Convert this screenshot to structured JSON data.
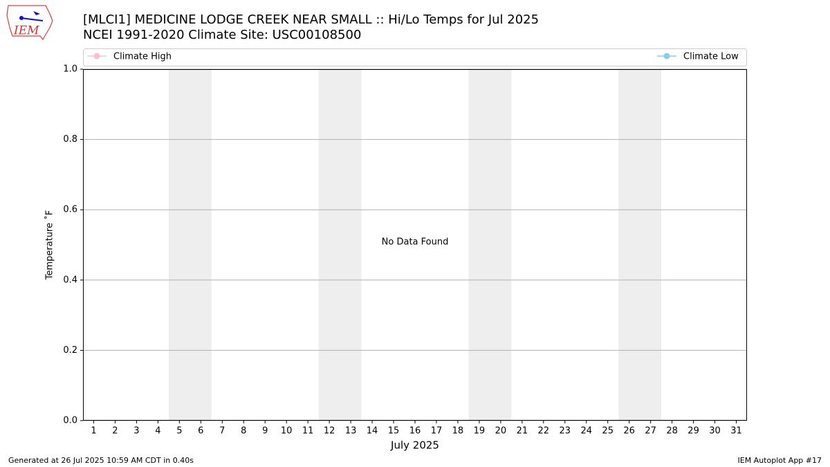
{
  "logo_text": "IEM",
  "footer_left": "Generated at 26 Jul 2025 10:59 AM CDT in 0.40s",
  "footer_right": "IEM Autoplot App #17",
  "chart_data": {
    "type": "line",
    "title": "[MLCI1] MEDICINE LODGE CREEK NEAR SMALL :: Hi/Lo Temps for Jul 2025",
    "subtitle": "NCEI 1991-2020 Climate Site: USC00108500",
    "xlabel": "July 2025",
    "ylabel": "Temperature ˚F",
    "annotation": "No Data Found",
    "x": [
      1,
      2,
      3,
      4,
      5,
      6,
      7,
      8,
      9,
      10,
      11,
      12,
      13,
      14,
      15,
      16,
      17,
      18,
      19,
      20,
      21,
      22,
      23,
      24,
      25,
      26,
      27,
      28,
      29,
      30,
      31
    ],
    "series": [
      {
        "name": "Climate High",
        "color": "#ffc0cb",
        "values": [
          null,
          null,
          null,
          null,
          null,
          null,
          null,
          null,
          null,
          null,
          null,
          null,
          null,
          null,
          null,
          null,
          null,
          null,
          null,
          null,
          null,
          null,
          null,
          null,
          null,
          null,
          null,
          null,
          null,
          null,
          null
        ]
      },
      {
        "name": "Climate Low",
        "color": "#87ceeb",
        "values": [
          null,
          null,
          null,
          null,
          null,
          null,
          null,
          null,
          null,
          null,
          null,
          null,
          null,
          null,
          null,
          null,
          null,
          null,
          null,
          null,
          null,
          null,
          null,
          null,
          null,
          null,
          null,
          null,
          null,
          null,
          null
        ]
      }
    ],
    "shaded_ranges": [
      [
        4.5,
        6.5
      ],
      [
        11.5,
        13.5
      ],
      [
        18.5,
        20.5
      ],
      [
        25.5,
        27.5
      ]
    ],
    "shade_color": "#eeeeee",
    "xlim": [
      0.5,
      31.5
    ],
    "xticks": [
      1,
      2,
      3,
      4,
      5,
      6,
      7,
      8,
      9,
      10,
      11,
      12,
      13,
      14,
      15,
      16,
      17,
      18,
      19,
      20,
      21,
      22,
      23,
      24,
      25,
      26,
      27,
      28,
      29,
      30,
      31
    ],
    "ylim": [
      0,
      1
    ],
    "yticks": [
      {
        "value": 0,
        "label": "0.0"
      },
      {
        "value": 0.2,
        "label": "0.2"
      },
      {
        "value": 0.4,
        "label": "0.4"
      },
      {
        "value": 0.6,
        "label": "0.6"
      },
      {
        "value": 0.8,
        "label": "0.8"
      },
      {
        "value": 1,
        "label": "1.0"
      }
    ],
    "grid": true
  }
}
